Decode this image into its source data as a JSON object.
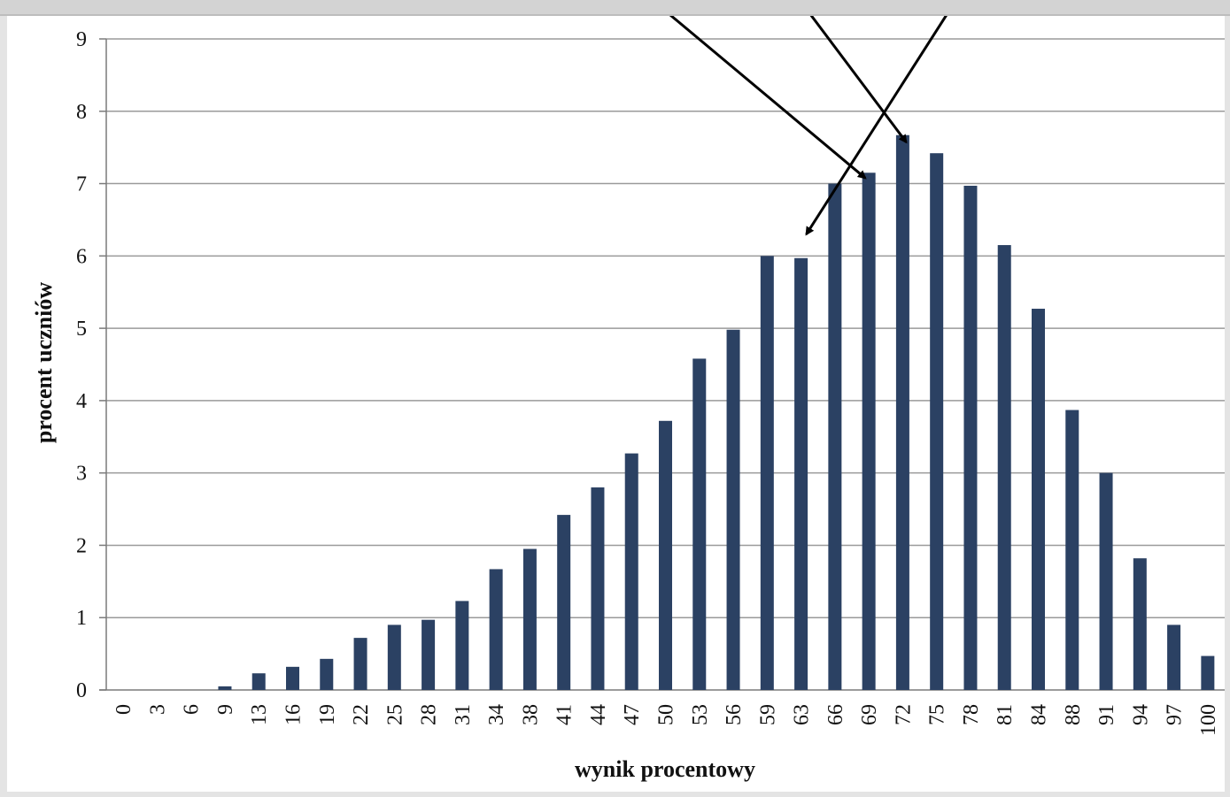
{
  "chart_data": {
    "type": "bar",
    "title": "",
    "xlabel": "wynik procentowy",
    "ylabel": "procent uczniów",
    "ylim": [
      0,
      9
    ],
    "yticks": [
      0,
      1,
      2,
      3,
      4,
      5,
      6,
      7,
      8,
      9
    ],
    "grid": true,
    "legend": "none",
    "bar_color": "#2b4163",
    "categories": [
      "0",
      "3",
      "6",
      "9",
      "13",
      "16",
      "19",
      "22",
      "25",
      "28",
      "31",
      "34",
      "38",
      "41",
      "44",
      "47",
      "50",
      "53",
      "56",
      "59",
      "63",
      "66",
      "69",
      "72",
      "75",
      "78",
      "81",
      "84",
      "88",
      "91",
      "94",
      "97",
      "100"
    ],
    "values": [
      0,
      0,
      0,
      0.05,
      0.23,
      0.32,
      0.43,
      0.72,
      0.9,
      0.97,
      1.23,
      1.67,
      1.95,
      2.42,
      2.8,
      3.27,
      3.72,
      4.58,
      4.98,
      6.0,
      5.97,
      7.0,
      7.15,
      7.67,
      7.42,
      6.97,
      6.15,
      5.27,
      3.87,
      3.0,
      1.82,
      0.9,
      0.47
    ],
    "annotations": [
      {
        "type": "arrow",
        "target_category": "63"
      },
      {
        "type": "arrow",
        "target_category": "69"
      },
      {
        "type": "arrow",
        "target_category": "72"
      }
    ]
  }
}
